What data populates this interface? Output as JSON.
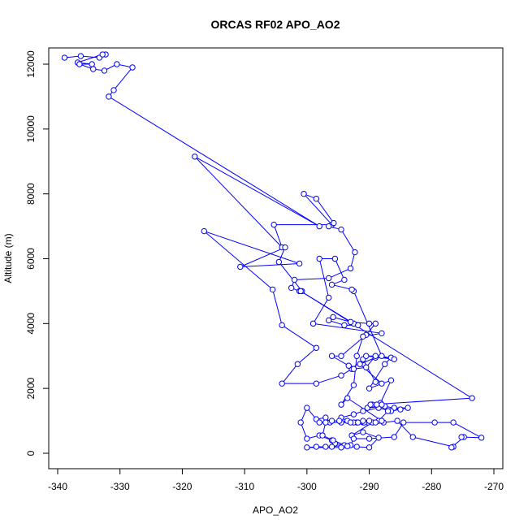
{
  "chart_data": {
    "type": "scatter",
    "title": "ORCAS RF02 APO_AO2",
    "xlabel": "APO_AO2",
    "ylabel": "Altitude (m)",
    "xlim": [
      -340,
      -270
    ],
    "ylim": [
      0,
      12000
    ],
    "xticks": [
      -340,
      -330,
      -320,
      -310,
      -300,
      -290,
      -280,
      -270
    ],
    "yticks": [
      0,
      2000,
      4000,
      6000,
      8000,
      10000,
      12000
    ],
    "series_color": "#0000ff",
    "marker": "open-circle",
    "connected": true,
    "series": [
      {
        "values": [
          [
            -338.9,
            12200
          ],
          [
            -336.3,
            12250
          ],
          [
            -333.3,
            12200
          ],
          [
            -332.3,
            12300
          ],
          [
            -332.8,
            12300
          ],
          [
            -336.8,
            12050
          ],
          [
            -334.5,
            12000
          ],
          [
            -336.5,
            12000
          ],
          [
            -334.3,
            11850
          ],
          [
            -332.5,
            11800
          ],
          [
            -330.5,
            12000
          ],
          [
            -328.0,
            11900
          ],
          [
            -331.0,
            11200
          ],
          [
            -331.8,
            11000
          ],
          [
            -298.0,
            7000
          ],
          [
            -318.0,
            9150
          ],
          [
            -304.0,
            6350
          ],
          [
            -305.3,
            7050
          ],
          [
            -296.0,
            7050
          ],
          [
            -300.5,
            8000
          ],
          [
            -298.5,
            7850
          ],
          [
            -295.7,
            7100
          ],
          [
            -296.5,
            7000
          ],
          [
            -294.5,
            6900
          ],
          [
            -292.3,
            6200
          ],
          [
            -293.0,
            5700
          ],
          [
            -296.5,
            5400
          ],
          [
            -302.0,
            5350
          ],
          [
            -302.5,
            5100
          ],
          [
            -301.2,
            5000
          ],
          [
            -300.8,
            5000
          ],
          [
            -304.5,
            5900
          ],
          [
            -303.5,
            6350
          ],
          [
            -310.7,
            5750
          ],
          [
            -301.2,
            5850
          ],
          [
            -316.5,
            6850
          ],
          [
            -305.5,
            5050
          ],
          [
            -304.0,
            3950
          ],
          [
            -298.5,
            3250
          ],
          [
            -301.5,
            2750
          ],
          [
            -304.0,
            2150
          ],
          [
            -298.5,
            2150
          ],
          [
            -294.5,
            2400
          ],
          [
            -292.8,
            2600
          ],
          [
            -291.0,
            2900
          ],
          [
            -289.0,
            2200
          ],
          [
            -288.0,
            2150
          ],
          [
            -291.5,
            2750
          ],
          [
            -289.0,
            2950
          ],
          [
            -286.5,
            2950
          ],
          [
            -287.5,
            2750
          ],
          [
            -290.0,
            2000
          ],
          [
            -286.5,
            2250
          ],
          [
            -288.2,
            1550
          ],
          [
            -289.5,
            1500
          ],
          [
            -290.3,
            1400
          ],
          [
            -287.5,
            1450
          ],
          [
            -285.0,
            1350
          ],
          [
            -286.0,
            1400
          ],
          [
            -283.8,
            1400
          ],
          [
            -286.5,
            1300
          ],
          [
            -288.5,
            1400
          ],
          [
            -291.0,
            1300
          ],
          [
            -292.5,
            1200
          ],
          [
            -294.5,
            1100
          ],
          [
            -293.5,
            1000
          ],
          [
            -292.0,
            950
          ],
          [
            -291.0,
            950
          ],
          [
            -290.2,
            950
          ],
          [
            -292.5,
            950
          ],
          [
            -294.5,
            950
          ],
          [
            -296.3,
            950
          ],
          [
            -297.0,
            1100
          ],
          [
            -298.5,
            1050
          ],
          [
            -300.0,
            1400
          ],
          [
            -301.0,
            950
          ],
          [
            -300.0,
            450
          ],
          [
            -298.0,
            550
          ],
          [
            -296.0,
            400
          ],
          [
            -295.5,
            300
          ],
          [
            -294.0,
            250
          ],
          [
            -296.0,
            200
          ],
          [
            -297.0,
            200
          ],
          [
            -298.5,
            200
          ],
          [
            -300.0,
            180
          ],
          [
            -294.5,
            180
          ],
          [
            -292.0,
            200
          ],
          [
            -290.0,
            180
          ],
          [
            -288.5,
            480
          ],
          [
            -291.0,
            650
          ],
          [
            -292.8,
            550
          ],
          [
            -289.5,
            950
          ],
          [
            -287.7,
            950
          ],
          [
            -285.5,
            1000
          ],
          [
            -283.0,
            500
          ],
          [
            -276.5,
            200
          ],
          [
            -276.8,
            180
          ],
          [
            -274.8,
            500
          ],
          [
            -275.2,
            500
          ],
          [
            -272.0,
            480
          ],
          [
            -276.5,
            950
          ],
          [
            -279.5,
            950
          ],
          [
            -284.5,
            950
          ],
          [
            -286.0,
            500
          ],
          [
            -290.0,
            450
          ],
          [
            -292.5,
            450
          ],
          [
            -293.0,
            250
          ],
          [
            -293.5,
            220
          ],
          [
            -295.8,
            400
          ],
          [
            -297.5,
            550
          ],
          [
            -297.0,
            950
          ],
          [
            -298.0,
            950
          ],
          [
            -296.0,
            1000
          ],
          [
            -294.8,
            1000
          ],
          [
            -293.0,
            950
          ],
          [
            -291.8,
            950
          ],
          [
            -290.8,
            950
          ],
          [
            -290.0,
            1000
          ],
          [
            -288.5,
            1000
          ],
          [
            -287.0,
            1300
          ],
          [
            -288.0,
            1500
          ],
          [
            -288.8,
            1500
          ],
          [
            -289.8,
            1500
          ],
          [
            -273.5,
            1700
          ],
          [
            -301.0,
            5000
          ],
          [
            -292.5,
            4000
          ],
          [
            -291.8,
            3950
          ],
          [
            -294.0,
            3950
          ],
          [
            -296.5,
            4100
          ],
          [
            -295.8,
            4200
          ],
          [
            -293.0,
            4050
          ],
          [
            -290.0,
            4000
          ],
          [
            -289.0,
            4000
          ],
          [
            -290.5,
            3650
          ],
          [
            -294.5,
            3000
          ],
          [
            -296.0,
            3000
          ],
          [
            -293.3,
            2700
          ],
          [
            -292.5,
            2600
          ],
          [
            -290.5,
            2650
          ],
          [
            -289.0,
            3000
          ],
          [
            -290.5,
            3000
          ],
          [
            -286.0,
            2900
          ],
          [
            -288.0,
            3000
          ],
          [
            -292.5,
            5000
          ],
          [
            -292.8,
            5050
          ],
          [
            -296.0,
            5200
          ],
          [
            -294.0,
            5350
          ],
          [
            -295.5,
            6000
          ],
          [
            -298.0,
            6000
          ],
          [
            -296.5,
            4800
          ],
          [
            -299.0,
            4000
          ],
          [
            -288.0,
            3700
          ],
          [
            -291.0,
            3600
          ],
          [
            -292.0,
            3000
          ],
          [
            -292.5,
            2100
          ],
          [
            -294.5,
            1500
          ],
          [
            -293.5,
            1700
          ],
          [
            -288.0,
            1000
          ],
          [
            -289.0,
            950
          ],
          [
            -291.0,
            1000
          ]
        ]
      }
    ]
  }
}
